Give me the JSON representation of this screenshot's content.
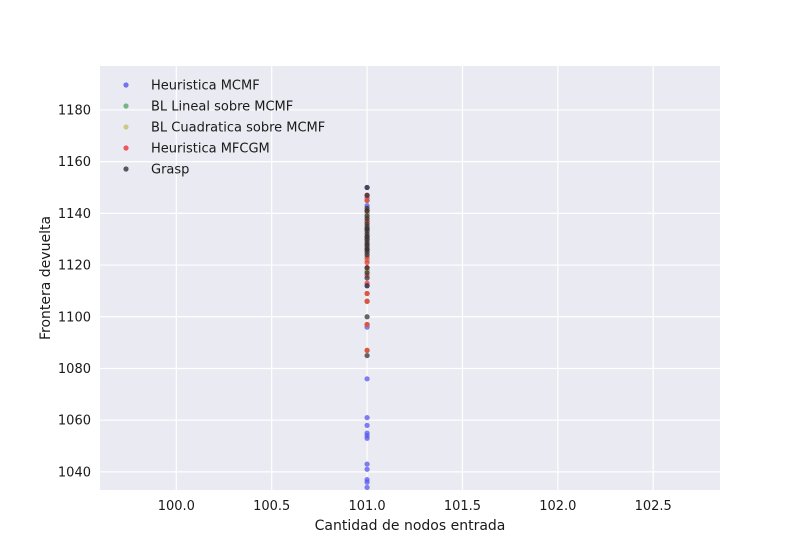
{
  "chart_data": {
    "type": "scatter",
    "title": "",
    "xlabel": "Cantidad de nodos entrada",
    "ylabel": "Frontera devuelta",
    "xlim": [
      99.6,
      102.85
    ],
    "ylim": [
      1033,
      1197
    ],
    "xticks": [
      100.0,
      100.5,
      101.0,
      101.5,
      102.0,
      102.5
    ],
    "xtick_labels": [
      "100.0",
      "100.5",
      "101.0",
      "101.5",
      "102.0",
      "102.5"
    ],
    "yticks": [
      1040,
      1060,
      1080,
      1100,
      1120,
      1140,
      1160,
      1180
    ],
    "ytick_labels": [
      "1040",
      "1060",
      "1080",
      "1100",
      "1120",
      "1140",
      "1160",
      "1180"
    ],
    "grid": true,
    "legend_position": "top-left",
    "background": "#eaeaf2",
    "series": [
      {
        "name": "Heuristica MCMF",
        "color": "#5555ee",
        "x": [
          101,
          101,
          101,
          101,
          101,
          101,
          101,
          101,
          101,
          101,
          101,
          101,
          101,
          101,
          101,
          101,
          101,
          101,
          101,
          101,
          101,
          101,
          101,
          101,
          101
        ],
        "y": [
          1034,
          1036,
          1037,
          1041,
          1043,
          1053,
          1054,
          1055,
          1058,
          1061,
          1076,
          1096,
          1097,
          1106,
          1112,
          1118,
          1122,
          1126,
          1130,
          1134,
          1137,
          1140,
          1143,
          1146,
          1150
        ]
      },
      {
        "name": "BL Lineal sobre MCMF",
        "color": "#55a868",
        "x": [
          101,
          101,
          101,
          101,
          101,
          101,
          101,
          101,
          101,
          101,
          101,
          101
        ],
        "y": [
          1087,
          1097,
          1106,
          1109,
          1118,
          1122,
          1126,
          1130,
          1134,
          1137,
          1140,
          1145
        ]
      },
      {
        "name": "BL Cuadratica sobre MCMF",
        "color": "#c4c06a",
        "x": [
          101,
          101,
          101,
          101,
          101,
          101,
          101,
          101,
          101,
          101,
          101,
          101
        ],
        "y": [
          1087,
          1097,
          1106,
          1109,
          1118,
          1122,
          1126,
          1130,
          1134,
          1137,
          1140,
          1145
        ]
      },
      {
        "name": "Heuristica MFCGM",
        "color": "#ee3333",
        "x": [
          101,
          101,
          101,
          101,
          101,
          101,
          101,
          101,
          101,
          101,
          101,
          101,
          101,
          101,
          101,
          101,
          101
        ],
        "y": [
          1087,
          1097,
          1106,
          1109,
          1113,
          1116,
          1119,
          1121,
          1123,
          1126,
          1128,
          1131,
          1134,
          1137,
          1141,
          1145,
          1147
        ]
      },
      {
        "name": "Grasp",
        "color": "#333333",
        "x": [
          101,
          101,
          101,
          101,
          101,
          101,
          101,
          101,
          101,
          101,
          101,
          101,
          101,
          101,
          101,
          101,
          101,
          101,
          101,
          101,
          101,
          101,
          101,
          101,
          101
        ],
        "y": [
          1085,
          1100,
          1112,
          1115,
          1117,
          1119,
          1124,
          1125,
          1126,
          1127,
          1128,
          1129,
          1130,
          1131,
          1132,
          1133,
          1134,
          1135,
          1136,
          1138,
          1139,
          1141,
          1142,
          1147,
          1150
        ]
      }
    ]
  }
}
